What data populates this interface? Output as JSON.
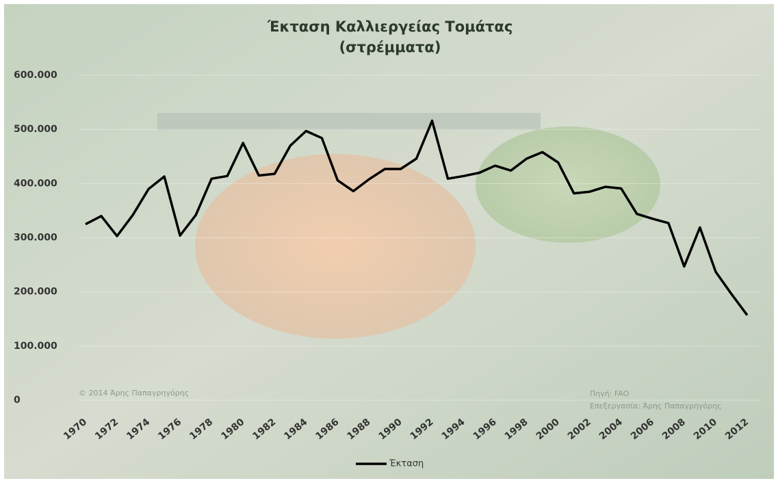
{
  "chart_data": {
    "type": "line",
    "title": "Έκταση Καλλιεργείας Τομάτας",
    "subtitle": "(στρέμματα)",
    "categories": [
      "1970",
      null,
      "1972",
      null,
      "1974",
      null,
      "1976",
      null,
      "1978",
      null,
      "1980",
      null,
      "1982",
      null,
      "1984",
      null,
      "1986",
      null,
      "1988",
      null,
      "1990",
      null,
      "1992",
      null,
      "1994",
      null,
      "1996",
      null,
      "1998",
      null,
      "2000",
      null,
      "2002",
      null,
      "2004",
      null,
      "2006",
      null,
      "2008",
      null,
      "2010",
      null,
      "2012"
    ],
    "series": [
      {
        "name": "Έκταση",
        "color": "#000000",
        "values": [
          325000,
          340000,
          303000,
          342000,
          390000,
          413000,
          304000,
          342000,
          409000,
          414000,
          475000,
          415000,
          418000,
          470000,
          497000,
          484000,
          406000,
          386000,
          408000,
          427000,
          427000,
          446000,
          516000,
          409000,
          414000,
          420000,
          433000,
          424000,
          446000,
          458000,
          439000,
          382000,
          385000,
          394000,
          391000,
          344000,
          335000,
          327000,
          247000,
          319000,
          237000,
          196000,
          157000
        ]
      }
    ],
    "ylim": [
      0,
      600000
    ],
    "yticks": [
      0,
      {
        "value": 100000,
        "label": "100.000"
      },
      {
        "value": 200000,
        "label": "200.000"
      },
      {
        "value": 300000,
        "label": "300.000"
      },
      {
        "value": 400000,
        "label": "400.000"
      },
      {
        "value": 500000,
        "label": "500.000"
      },
      {
        "value": 600000,
        "label": "600.000"
      }
    ],
    "grid": true,
    "legend": "bottom",
    "annotations": [
      "© 2014 Άρης Παπαγρηγόρης",
      "Πηγή: FAO",
      "Επεξεργασία: Άρης Παπαγρηγόρης"
    ]
  }
}
